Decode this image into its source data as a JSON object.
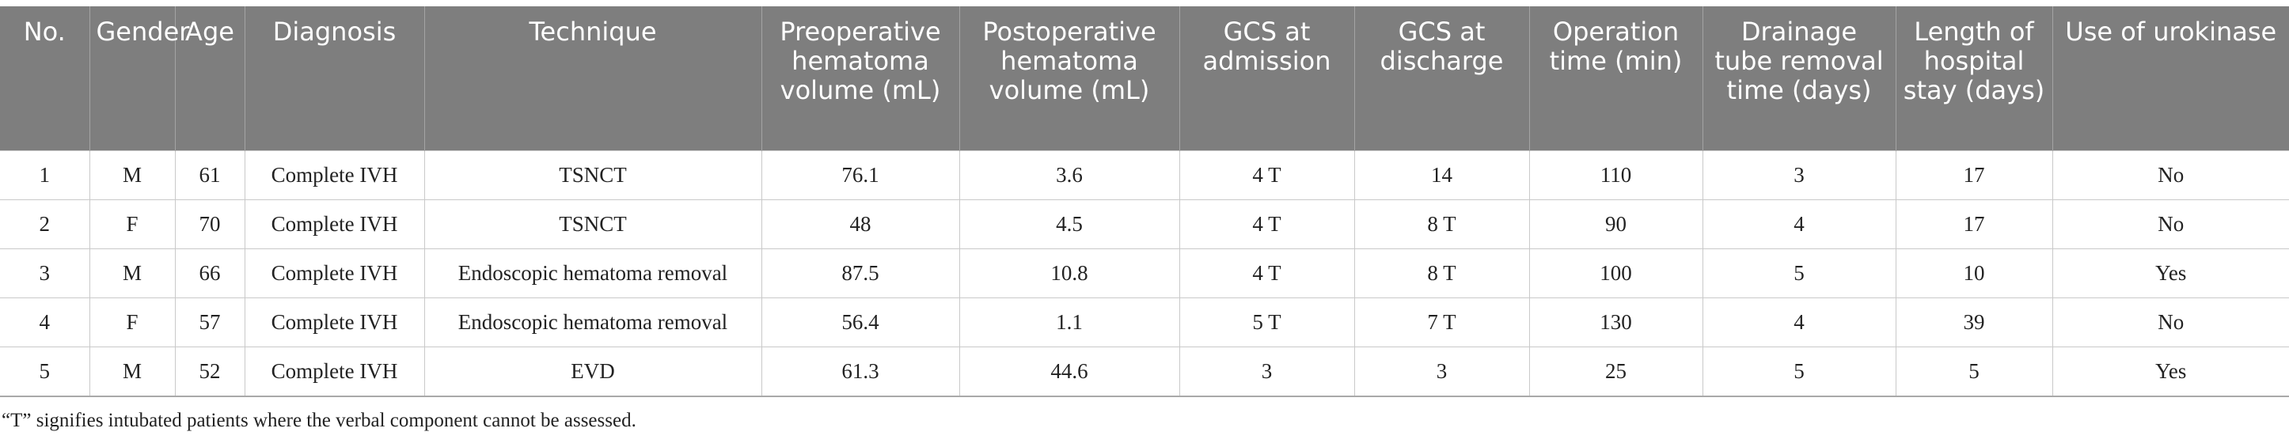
{
  "table": {
    "headers": [
      "No.",
      "Gender",
      "Age",
      "Diagnosis",
      "Technique",
      "Preoperative hematoma volume (mL)",
      "Postoperative hematoma volume (mL)",
      "GCS at admission",
      "GCS at discharge",
      "Operation time (min)",
      "Drainage tube removal time (days)",
      "Length of hospital stay (days)",
      "Use of urokinase"
    ],
    "rows": [
      [
        "1",
        "M",
        "61",
        "Complete IVH",
        "TSNCT",
        "76.1",
        "3.6",
        "4 T",
        "14",
        "110",
        "3",
        "17",
        "No"
      ],
      [
        "2",
        "F",
        "70",
        "Complete IVH",
        "TSNCT",
        "48",
        "4.5",
        "4 T",
        "8 T",
        "90",
        "4",
        "17",
        "No"
      ],
      [
        "3",
        "M",
        "66",
        "Complete IVH",
        "Endoscopic hematoma removal",
        "87.5",
        "10.8",
        "4 T",
        "8 T",
        "100",
        "5",
        "10",
        "Yes"
      ],
      [
        "4",
        "F",
        "57",
        "Complete IVH",
        "Endoscopic hematoma removal",
        "56.4",
        "1.1",
        "5 T",
        "7 T",
        "130",
        "4",
        "39",
        "No"
      ],
      [
        "5",
        "M",
        "52",
        "Complete IVH",
        "EVD",
        "61.3",
        "44.6",
        "3",
        "3",
        "25",
        "5",
        "5",
        "Yes"
      ]
    ]
  },
  "footnote": "“T” signifies intubated patients where the verbal component cannot be assessed."
}
